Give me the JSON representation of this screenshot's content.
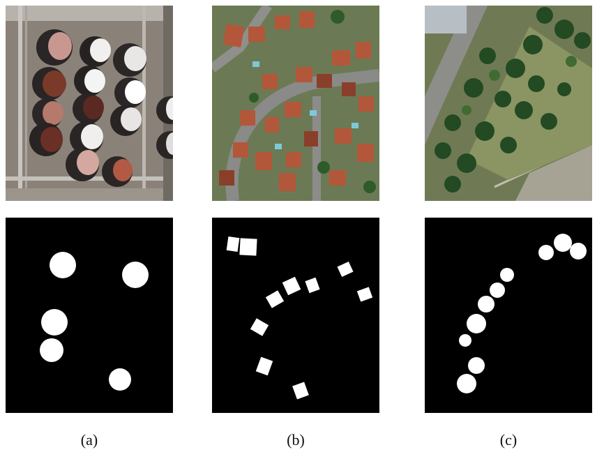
{
  "captions": {
    "a": "(a)",
    "b": "(b)",
    "c": "(c)"
  },
  "colors": {
    "mask_background": "#000000",
    "mask_foreground": "#ffffff"
  }
}
